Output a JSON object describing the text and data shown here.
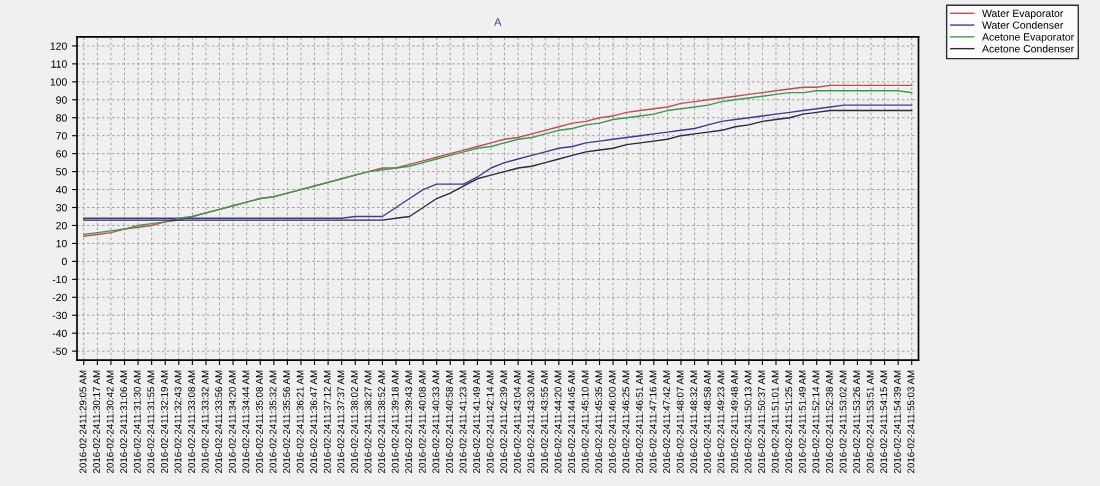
{
  "chart_data": {
    "type": "line",
    "title": "A",
    "categories": [
      "2016-02-2411:29:05 AM",
      "2016-02-2411:30:17 AM",
      "2016-02-2411:30:42 AM",
      "2016-02-2411:31:06 AM",
      "2016-02-2411:31:30 AM",
      "2016-02-2411:31:55 AM",
      "2016-02-2411:32:19 AM",
      "2016-02-2411:32:43 AM",
      "2016-02-2411:33:08 AM",
      "2016-02-2411:33:32 AM",
      "2016-02-2411:33:56 AM",
      "2016-02-2411:34:20 AM",
      "2016-02-2411:34:44 AM",
      "2016-02-2411:35:08 AM",
      "2016-02-2411:35:32 AM",
      "2016-02-2411:35:56 AM",
      "2016-02-2411:36:21 AM",
      "2016-02-2411:36:47 AM",
      "2016-02-2411:37:12 AM",
      "2016-02-2411:37:37 AM",
      "2016-02-2411:38:02 AM",
      "2016-02-2411:38:27 AM",
      "2016-02-2411:38:52 AM",
      "2016-02-2411:39:18 AM",
      "2016-02-2411:39:43 AM",
      "2016-02-2411:40:08 AM",
      "2016-02-2411:40:33 AM",
      "2016-02-2411:40:58 AM",
      "2016-02-2411:41:23 AM",
      "2016-02-2411:41:49 AM",
      "2016-02-2411:42:14 AM",
      "2016-02-2411:42:39 AM",
      "2016-02-2411:43:04 AM",
      "2016-02-2411:43:30 AM",
      "2016-02-2411:43:55 AM",
      "2016-02-2411:44:20 AM",
      "2016-02-2411:44:45 AM",
      "2016-02-2411:45:10 AM",
      "2016-02-2411:45:35 AM",
      "2016-02-2411:46:00 AM",
      "2016-02-2411:46:25 AM",
      "2016-02-2411:46:51 AM",
      "2016-02-2411:47:16 AM",
      "2016-02-2411:47:42 AM",
      "2016-02-2411:48:07 AM",
      "2016-02-2411:48:32 AM",
      "2016-02-2411:48:58 AM",
      "2016-02-2411:49:23 AM",
      "2016-02-2411:49:48 AM",
      "2016-02-2411:50:13 AM",
      "2016-02-2411:50:37 AM",
      "2016-02-2411:51:01 AM",
      "2016-02-2411:51:25 AM",
      "2016-02-2411:51:49 AM",
      "2016-02-2411:52:14 AM",
      "2016-02-2411:52:38 AM",
      "2016-02-2411:53:02 AM",
      "2016-02-2411:53:26 AM",
      "2016-02-2411:53:51 AM",
      "2016-02-2411:54:15 AM",
      "2016-02-2411:54:39 AM",
      "2016-02-2411:55:03 AM"
    ],
    "series": [
      {
        "name": "Water Evaporator",
        "color": "#c0504d",
        "values": [
          14,
          15,
          16,
          18,
          19,
          20,
          22,
          23,
          25,
          27,
          29,
          31,
          33,
          35,
          36,
          38,
          40,
          42,
          44,
          46,
          48,
          50,
          52,
          52,
          54,
          56,
          58,
          60,
          62,
          64,
          66,
          68,
          69,
          71,
          73,
          75,
          77,
          78,
          80,
          81,
          83,
          84,
          85,
          86,
          88,
          89,
          90,
          91,
          92,
          93,
          94,
          95,
          96,
          97,
          97,
          98,
          98,
          98,
          98,
          98,
          98,
          98
        ]
      },
      {
        "name": "Water Condenser",
        "color": "#3c3c9c",
        "values": [
          24,
          24,
          24,
          24,
          24,
          24,
          24,
          24,
          24,
          24,
          24,
          24,
          24,
          24,
          24,
          24,
          24,
          24,
          24,
          24,
          25,
          25,
          25,
          30,
          35,
          40,
          43,
          43,
          43,
          47,
          52,
          55,
          57,
          59,
          61,
          63,
          64,
          66,
          67,
          68,
          69,
          70,
          71,
          72,
          73,
          74,
          76,
          78,
          79,
          80,
          81,
          82,
          83,
          84,
          85,
          86,
          87,
          87,
          87,
          87,
          87,
          87
        ]
      },
      {
        "name": "Acetone Evaporator",
        "color": "#3c9a50",
        "values": [
          15,
          16,
          17,
          18,
          20,
          21,
          22,
          24,
          25,
          27,
          29,
          31,
          33,
          35,
          36,
          38,
          40,
          42,
          44,
          46,
          48,
          50,
          51,
          52,
          53,
          55,
          57,
          59,
          61,
          63,
          64,
          66,
          68,
          69,
          71,
          73,
          74,
          76,
          77,
          79,
          80,
          81,
          82,
          84,
          85,
          86,
          87,
          89,
          90,
          91,
          92,
          93,
          94,
          94,
          95,
          95,
          95,
          95,
          95,
          95,
          95,
          94
        ]
      },
      {
        "name": "Acetone Condenser",
        "color": "#2a2a44",
        "values": [
          23,
          23,
          23,
          23,
          23,
          23,
          23,
          23,
          23,
          23,
          23,
          23,
          23,
          23,
          23,
          23,
          23,
          23,
          23,
          23,
          23,
          23,
          23,
          24,
          25,
          30,
          35,
          38,
          42,
          46,
          48,
          50,
          52,
          53,
          55,
          57,
          59,
          61,
          62,
          63,
          65,
          66,
          67,
          68,
          70,
          71,
          72,
          73,
          75,
          76,
          78,
          79,
          80,
          82,
          83,
          84,
          84,
          84,
          84,
          84,
          84,
          84
        ]
      }
    ],
    "ylim": [
      -55,
      125
    ],
    "yticks": [
      -50,
      -40,
      -30,
      -20,
      -10,
      0,
      10,
      20,
      30,
      40,
      50,
      60,
      70,
      80,
      90,
      100,
      110,
      120
    ],
    "grid": true,
    "legend": "top right",
    "marker": "none",
    "line_style": "solid"
  }
}
